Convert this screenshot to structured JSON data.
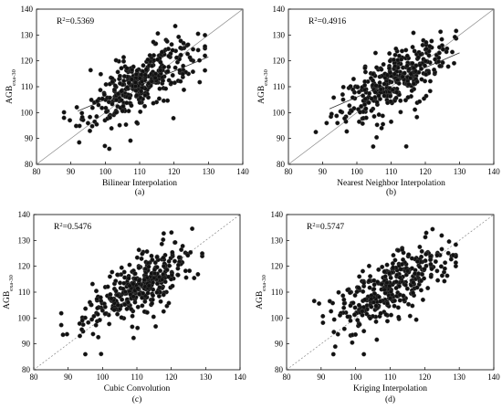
{
  "chart_data": [
    {
      "type": "scatter",
      "panel": "(a)",
      "xlabel": "Bilinear Interpolation",
      "ylabel": "AGB",
      "ylabel_sub": "exa-30",
      "r2": "0.5369",
      "r2_prefix": "R",
      "r2_sup": "2",
      "r2_suffix": "=0.5369",
      "xlim": [
        80,
        140
      ],
      "ylim": [
        80,
        140
      ],
      "xticks": [
        80,
        90,
        100,
        110,
        120,
        130,
        140
      ],
      "yticks": [
        80,
        90,
        100,
        110,
        120,
        130,
        140
      ],
      "reference_line": "solid",
      "fit_line": {
        "slope": 0.55,
        "intercept": 50
      }
    },
    {
      "type": "scatter",
      "panel": "(b)",
      "xlabel": "Nearest Neighbor Interpolation",
      "ylabel": "AGB",
      "ylabel_sub": "exa-30",
      "r2": "0.4916",
      "r2_prefix": "R",
      "r2_sup": "2",
      "r2_suffix": "=0.4916",
      "xlim": [
        80,
        140
      ],
      "ylim": [
        80,
        140
      ],
      "xticks": [
        80,
        90,
        100,
        110,
        120,
        130,
        140
      ],
      "yticks": [
        80,
        90,
        100,
        110,
        120,
        130,
        140
      ],
      "reference_line": "solid",
      "fit_line": {
        "slope": 0.57,
        "intercept": 49
      }
    },
    {
      "type": "scatter",
      "panel": "(c)",
      "xlabel": "Cubic Convolution",
      "ylabel": "AGB",
      "ylabel_sub": "exa-30",
      "r2": "0.5476",
      "r2_prefix": "R",
      "r2_sup": "2",
      "r2_suffix": "=0.5476",
      "xlim": [
        80,
        140
      ],
      "ylim": [
        80,
        140
      ],
      "xticks": [
        80,
        90,
        100,
        110,
        120,
        130,
        140
      ],
      "yticks": [
        80,
        90,
        100,
        110,
        120,
        130,
        140
      ],
      "reference_line": "dashed",
      "fit_line": null
    },
    {
      "type": "scatter",
      "panel": "(d)",
      "xlabel": "Kriging Interpolation",
      "ylabel": "AGB",
      "ylabel_sub": "exa-30",
      "r2": "0.5747",
      "r2_prefix": "R",
      "r2_sup": "2",
      "r2_suffix": "=0.5747",
      "xlim": [
        80,
        140
      ],
      "ylim": [
        80,
        140
      ],
      "xticks": [
        80,
        90,
        100,
        110,
        120,
        130,
        140
      ],
      "yticks": [
        80,
        90,
        100,
        110,
        120,
        130,
        140
      ],
      "reference_line": "dashed",
      "fit_line": null
    }
  ]
}
